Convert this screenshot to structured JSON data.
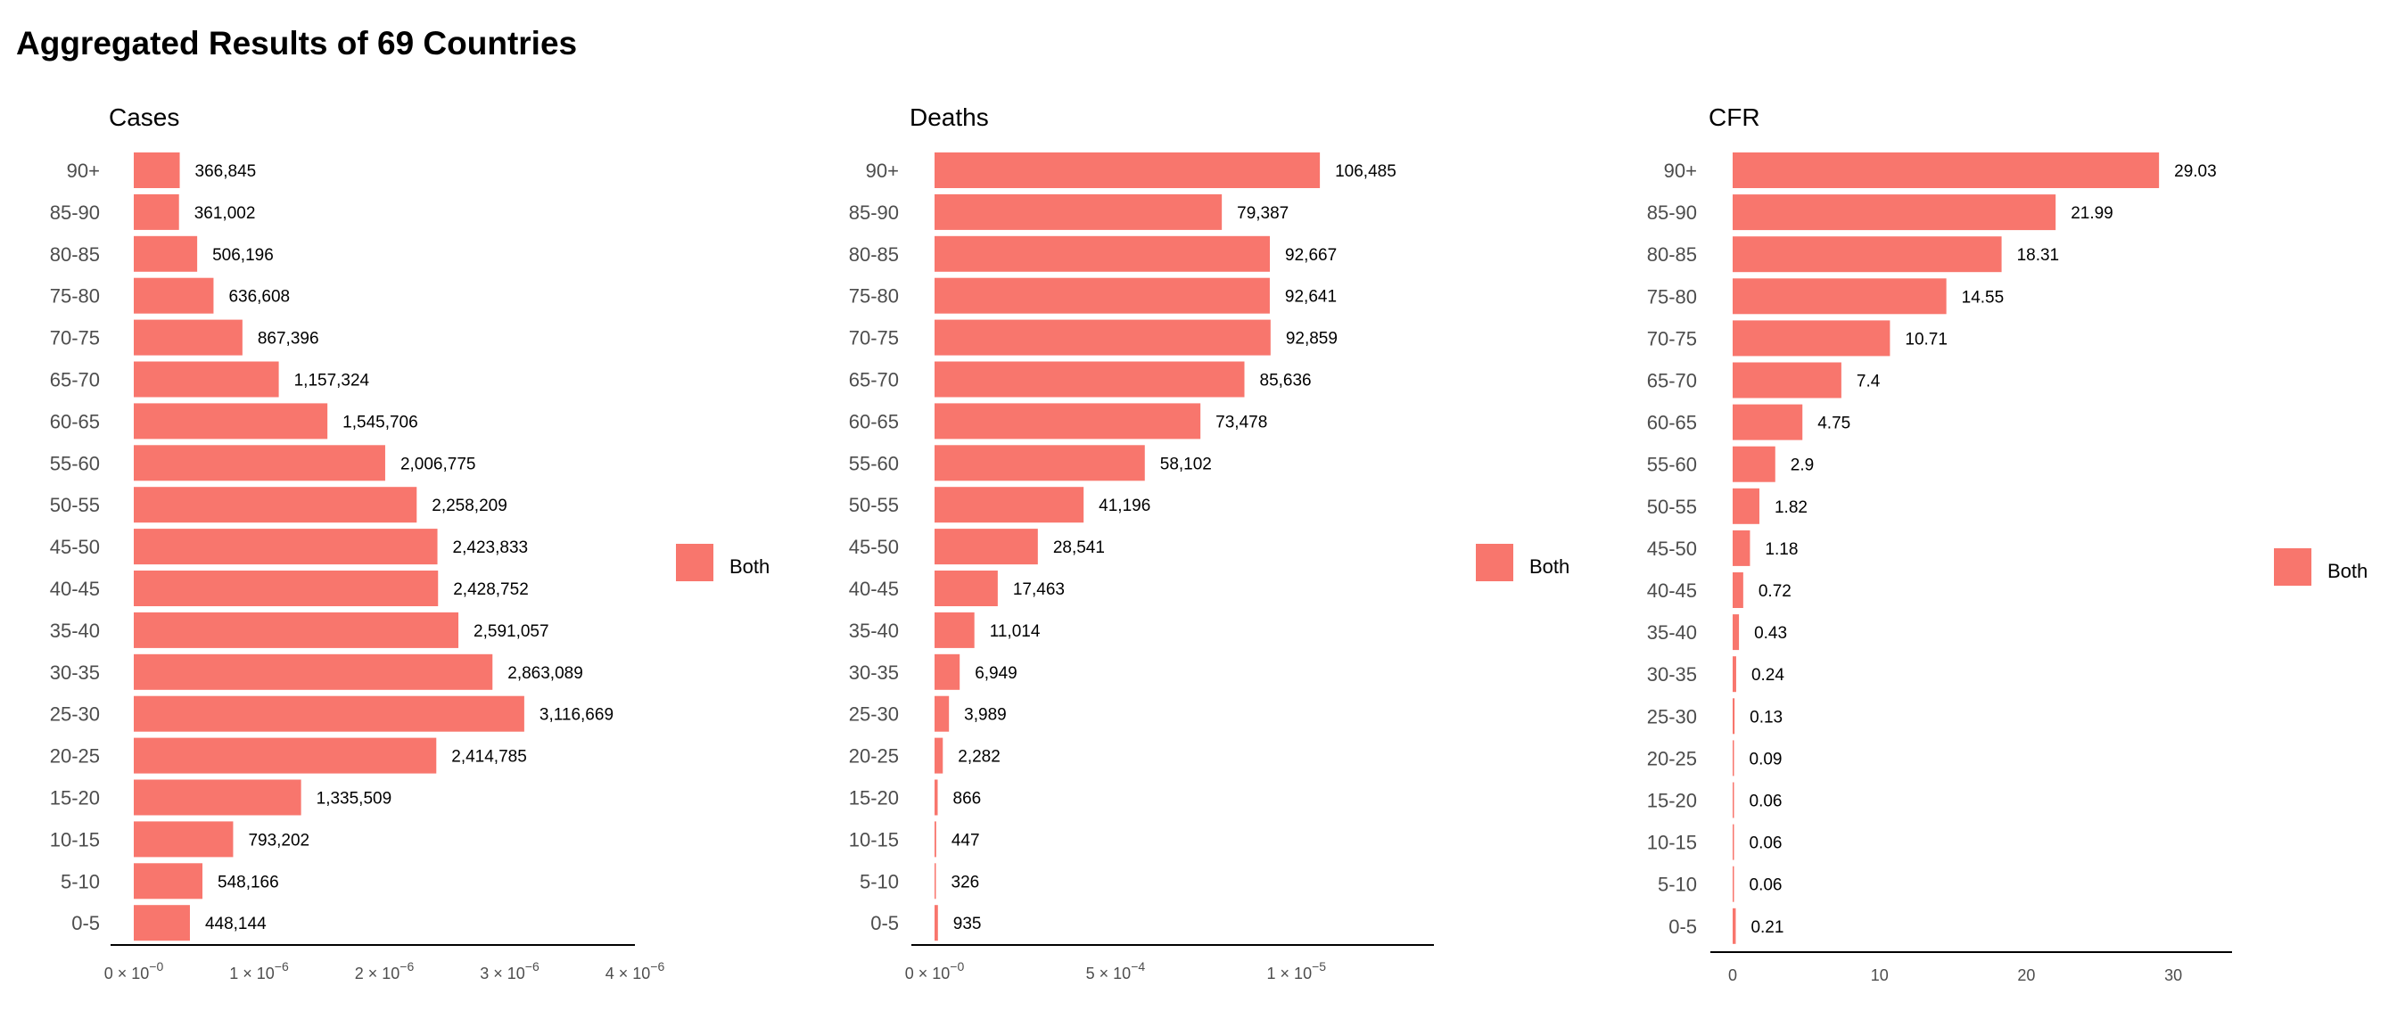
{
  "title": "Aggregated Results of 69 Countries",
  "colors": {
    "bar": "#F8766D",
    "axis": "#000000",
    "tick_text": "#4d4d4d"
  },
  "chart_data": [
    {
      "type": "bar",
      "orientation": "horizontal",
      "title": "Cases",
      "categories": [
        "90+",
        "85-90",
        "80-85",
        "75-80",
        "70-75",
        "65-70",
        "60-65",
        "55-60",
        "50-55",
        "45-50",
        "40-45",
        "35-40",
        "30-35",
        "25-30",
        "20-25",
        "15-20",
        "10-15",
        "5-10",
        "0-5"
      ],
      "values": [
        366845,
        361002,
        506196,
        636608,
        867396,
        1157324,
        1545706,
        2006775,
        2258209,
        2423833,
        2428752,
        2591057,
        2863089,
        3116669,
        2414785,
        1335509,
        793202,
        548166,
        448144
      ],
      "value_labels": [
        "366,845",
        "361,002",
        "506,196",
        "636,608",
        "867,396",
        "1,157,324",
        "1,545,706",
        "2,006,775",
        "2,258,209",
        "2,423,833",
        "2,428,752",
        "2,591,057",
        "2,863,089",
        "3,116,669",
        "2,414,785",
        "1,335,509",
        "793,202",
        "548,166",
        "448,144"
      ],
      "xlim": [
        0,
        4000000
      ],
      "x_ticks": [
        0,
        1000000,
        2000000,
        3000000,
        4000000
      ],
      "x_tick_labels": [
        {
          "m": "0 × 10",
          "e": "−0"
        },
        {
          "m": "1 × 10",
          "e": "−6"
        },
        {
          "m": "2 × 10",
          "e": "−6"
        },
        {
          "m": "3 × 10",
          "e": "−6"
        },
        {
          "m": "4 × 10",
          "e": "−6"
        }
      ],
      "legend": "Both"
    },
    {
      "type": "bar",
      "orientation": "horizontal",
      "title": "Deaths",
      "categories": [
        "90+",
        "85-90",
        "80-85",
        "75-80",
        "70-75",
        "65-70",
        "60-65",
        "55-60",
        "50-55",
        "45-50",
        "40-45",
        "35-40",
        "30-35",
        "25-30",
        "20-25",
        "15-20",
        "10-15",
        "5-10",
        "0-5"
      ],
      "values": [
        106485,
        79387,
        92667,
        92641,
        92859,
        85636,
        73478,
        58102,
        41196,
        28541,
        17463,
        11014,
        6949,
        3989,
        2282,
        866,
        447,
        326,
        935
      ],
      "value_labels": [
        "106,485",
        "79,387",
        "92,667",
        "92,641",
        "92,859",
        "85,636",
        "73,478",
        "58,102",
        "41,196",
        "28,541",
        "17,463",
        "11,014",
        "6,949",
        "3,989",
        "2,282",
        "866",
        "447",
        "326",
        "935"
      ],
      "xlim": [
        0,
        138000
      ],
      "x_ticks": [
        0,
        50000,
        100000
      ],
      "x_tick_labels": [
        {
          "m": "0 × 10",
          "e": "−0"
        },
        {
          "m": "5 × 10",
          "e": "−4"
        },
        {
          "m": "1 × 10",
          "e": "−5"
        }
      ],
      "legend": "Both"
    },
    {
      "type": "bar",
      "orientation": "horizontal",
      "title": "CFR",
      "categories": [
        "90+",
        "85-90",
        "80-85",
        "75-80",
        "70-75",
        "65-70",
        "60-65",
        "55-60",
        "50-55",
        "45-50",
        "40-45",
        "35-40",
        "30-35",
        "25-30",
        "20-25",
        "15-20",
        "10-15",
        "5-10",
        "0-5"
      ],
      "values": [
        29.03,
        21.99,
        18.31,
        14.55,
        10.71,
        7.4,
        4.75,
        2.9,
        1.82,
        1.18,
        0.72,
        0.43,
        0.24,
        0.13,
        0.09,
        0.06,
        0.06,
        0.06,
        0.21
      ],
      "value_labels": [
        "29.03",
        "21.99",
        "18.31",
        "14.55",
        "10.71",
        "7.4",
        "4.75",
        "2.9",
        "1.82",
        "1.18",
        "0.72",
        "0.43",
        "0.24",
        "0.13",
        "0.09",
        "0.06",
        "0.06",
        "0.06",
        "0.21"
      ],
      "xlim": [
        0,
        34
      ],
      "x_ticks": [
        0,
        10,
        20,
        30
      ],
      "x_tick_labels": [
        {
          "m": "0",
          "e": ""
        },
        {
          "m": "10",
          "e": ""
        },
        {
          "m": "20",
          "e": ""
        },
        {
          "m": "30",
          "e": ""
        }
      ],
      "legend": "Both"
    }
  ]
}
